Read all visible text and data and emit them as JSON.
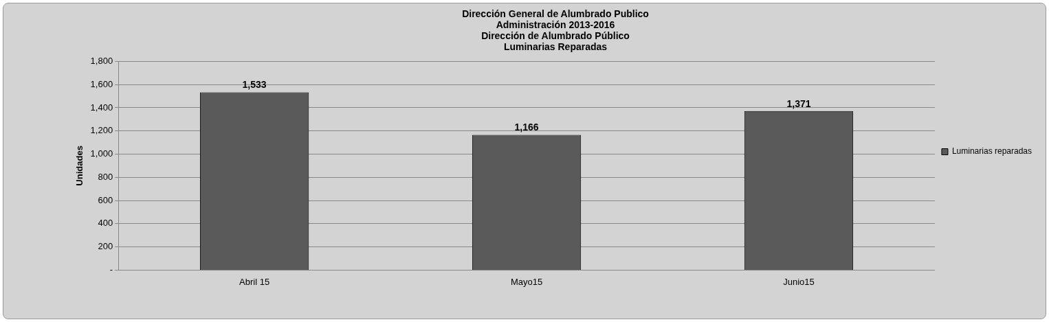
{
  "chart_data": {
    "type": "bar",
    "title": "Dirección General de Alumbrado Publico\nAdministración 2013-2016\nDirección de Alumbrado Público\nLuminarias Reparadas",
    "ylabel": "Unidades",
    "categories": [
      "Abril 15",
      "Mayo15",
      "Junio15"
    ],
    "series": [
      {
        "name": "Luminarias reparadas",
        "color": "#5a5a5a",
        "values": [
          1533,
          1166,
          1371
        ],
        "value_labels": [
          "1,533",
          "1,166",
          "1,371"
        ]
      }
    ],
    "ylim": [
      0,
      1800
    ],
    "yticks": [
      {
        "value": 0,
        "label": "-"
      },
      {
        "value": 200,
        "label": "200"
      },
      {
        "value": 400,
        "label": "400"
      },
      {
        "value": 600,
        "label": "600"
      },
      {
        "value": 800,
        "label": "800"
      },
      {
        "value": 1000,
        "label": "1,000"
      },
      {
        "value": 1200,
        "label": "1,200"
      },
      {
        "value": 1400,
        "label": "1,400"
      },
      {
        "value": 1600,
        "label": "1,600"
      },
      {
        "value": 1800,
        "label": "1,800"
      }
    ],
    "grid": "y",
    "legend": "right"
  }
}
